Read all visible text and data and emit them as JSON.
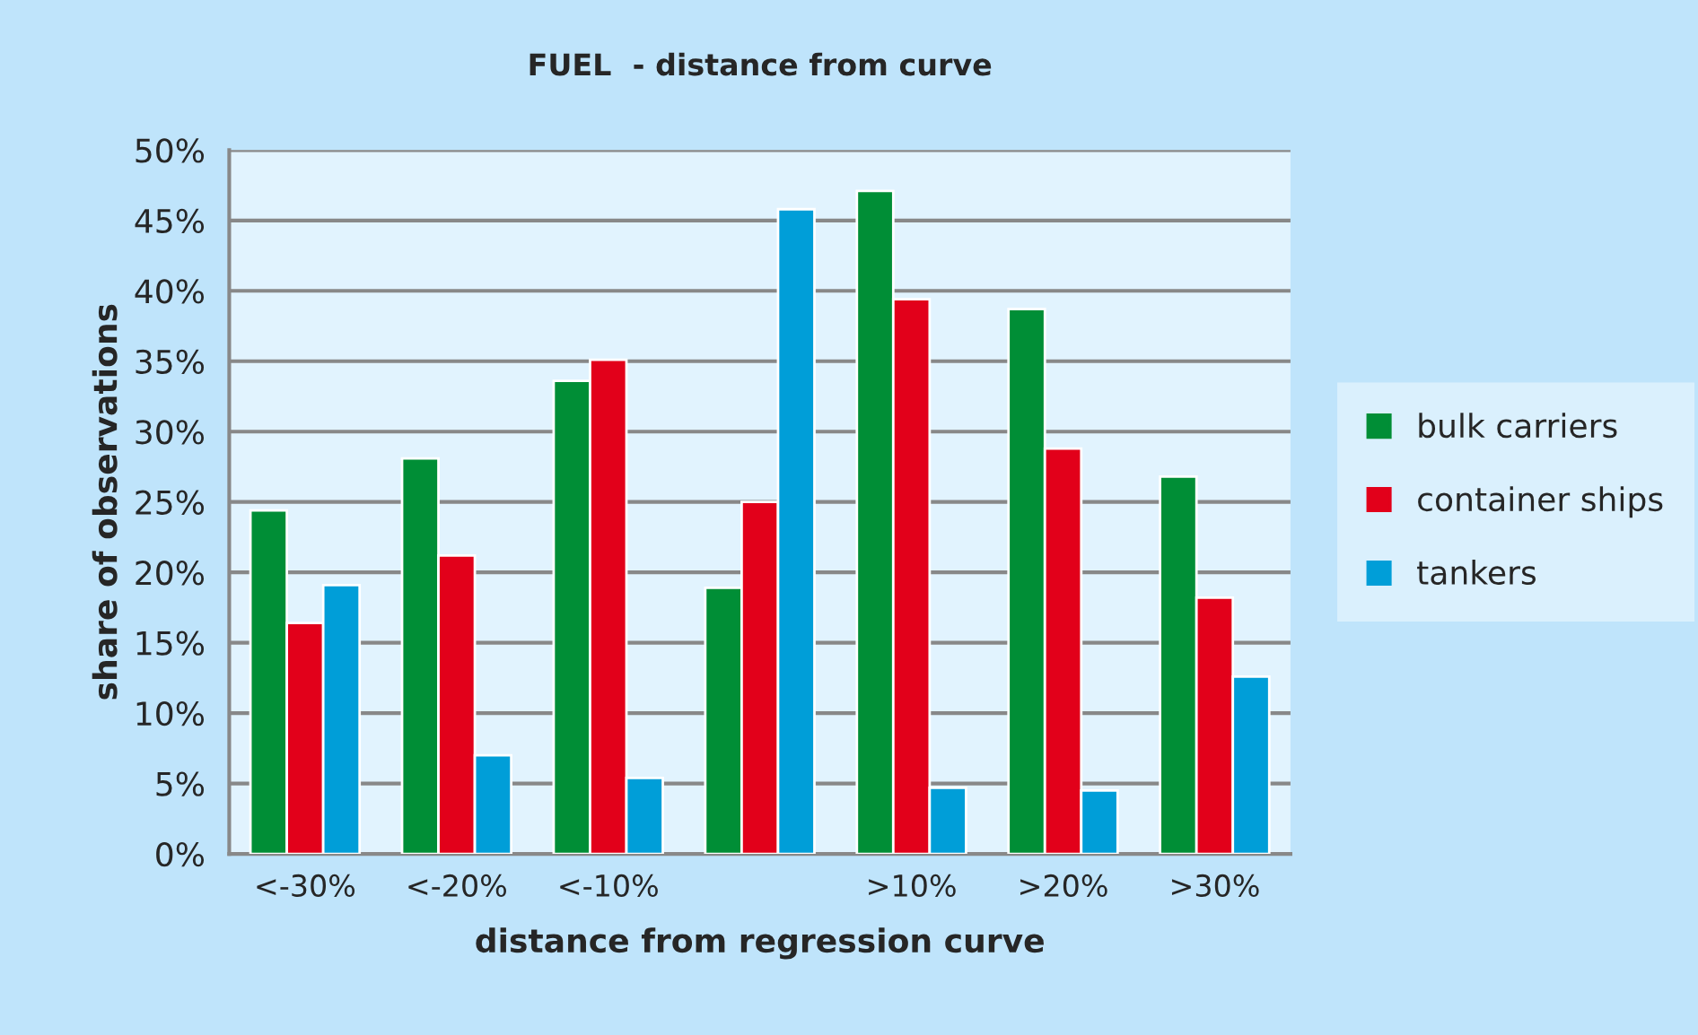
{
  "chart_data": {
    "type": "bar",
    "title": "FUEL  - distance from curve",
    "xlabel": "distance from regression curve",
    "ylabel": "share of observations",
    "categories": [
      "<-30%",
      "<-20%",
      "<-10%",
      null,
      ">10%",
      ">20%",
      ">30%"
    ],
    "series": [
      {
        "name": "bulk carriers",
        "color": "#008e36",
        "values": [
          24.4,
          28.1,
          33.6,
          18.9,
          47.1,
          38.7,
          26.8
        ]
      },
      {
        "name": "container ships",
        "color": "#e2001a",
        "values": [
          16.4,
          21.2,
          35.1,
          25.0,
          39.4,
          28.8,
          18.2
        ]
      },
      {
        "name": "tankers",
        "color": "#009ed8",
        "values": [
          19.1,
          7.0,
          5.4,
          45.8,
          4.7,
          4.5,
          12.6
        ]
      }
    ],
    "ylim": [
      0,
      50
    ],
    "yticks": [
      {
        "value": 0,
        "label": "0%"
      },
      {
        "value": 5,
        "label": "5%"
      },
      {
        "value": 10,
        "label": "10%"
      },
      {
        "value": 15,
        "label": "15%"
      },
      {
        "value": 20,
        "label": "20%"
      },
      {
        "value": 25,
        "label": "25%"
      },
      {
        "value": 30,
        "label": "30%"
      },
      {
        "value": 35,
        "label": "35%"
      },
      {
        "value": 40,
        "label": "40%"
      },
      {
        "value": 45,
        "label": "45%"
      },
      {
        "value": 50,
        "label": "50%"
      }
    ],
    "grid": "y",
    "legend": "right"
  }
}
